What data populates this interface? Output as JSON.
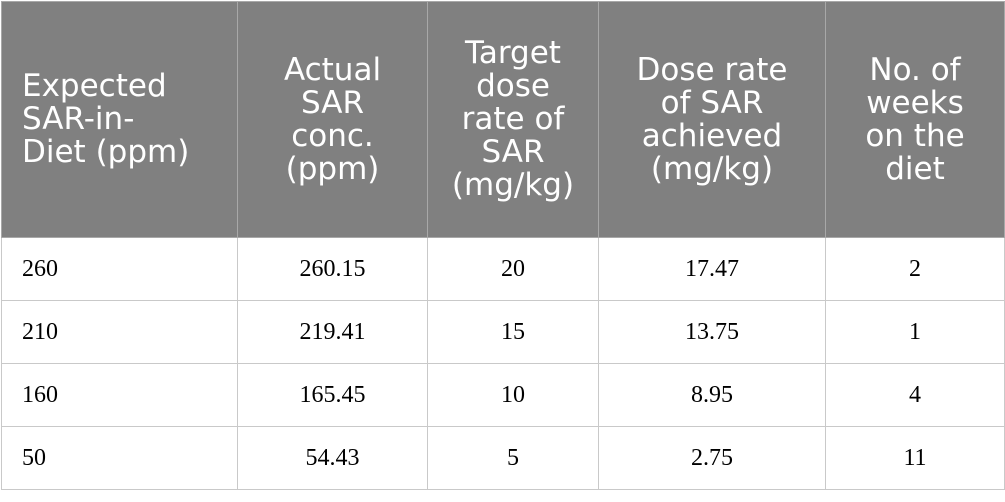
{
  "table": {
    "headers": [
      [
        "Expected",
        "SAR-in-",
        "Diet (ppm)"
      ],
      [
        "Actual",
        "SAR",
        "conc.",
        "(ppm)"
      ],
      [
        "Target",
        "dose",
        "rate of",
        "SAR",
        "(mg/kg)"
      ],
      [
        "Dose rate",
        "of SAR",
        "achieved",
        "(mg/kg)"
      ],
      [
        "No. of",
        "weeks",
        "on the",
        "diet"
      ]
    ],
    "rows": [
      [
        "260",
        "260.15",
        "20",
        "17.47",
        "2"
      ],
      [
        "210",
        "219.41",
        "15",
        "13.75",
        "1"
      ],
      [
        "160",
        "165.45",
        "10",
        "8.95",
        "4"
      ],
      [
        "50",
        "54.43",
        "5",
        "2.75",
        "11"
      ]
    ]
  }
}
